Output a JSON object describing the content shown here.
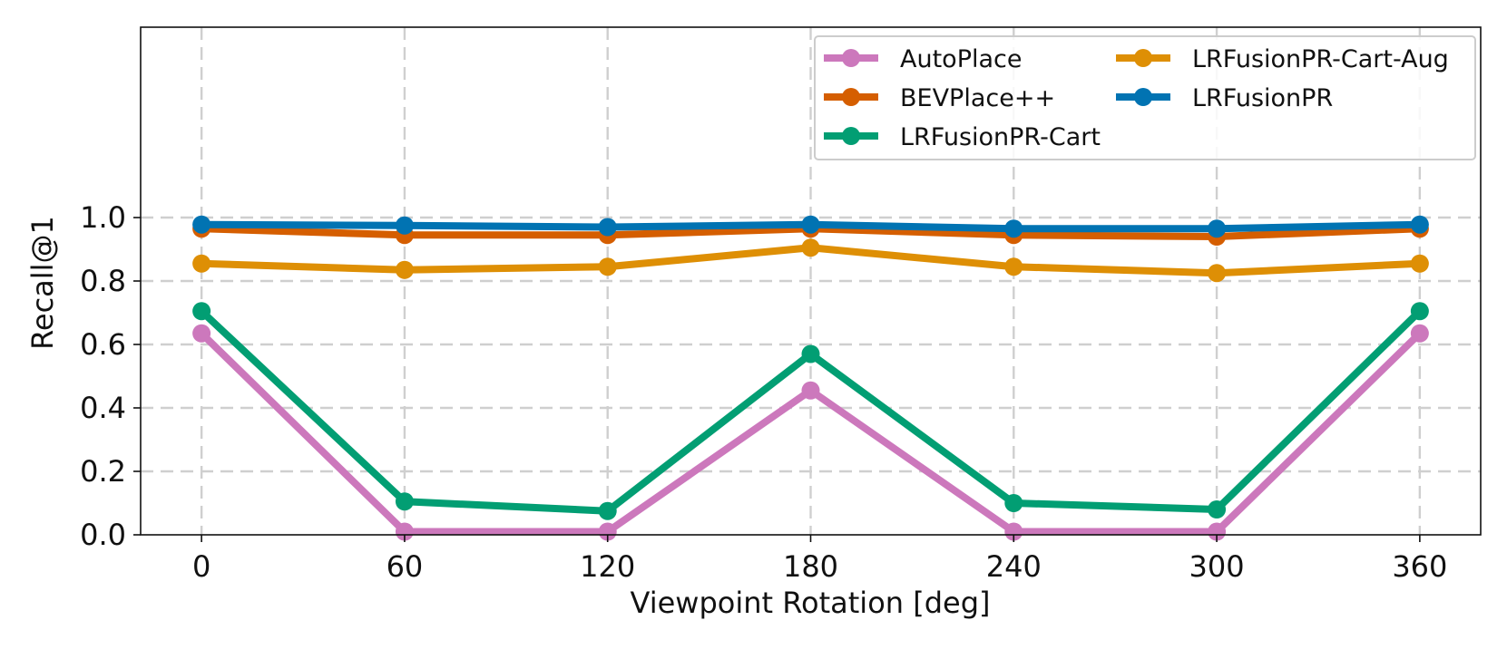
{
  "chart_data": {
    "type": "line",
    "title": "",
    "xlabel": "Viewpoint Rotation [deg]",
    "ylabel": "Recall@1",
    "x": [
      0,
      60,
      120,
      180,
      240,
      300,
      360
    ],
    "xticks": [
      "0",
      "60",
      "120",
      "180",
      "240",
      "300",
      "360"
    ],
    "yticks": [
      "0.0",
      "0.2",
      "0.4",
      "0.6",
      "0.8",
      "1.0"
    ],
    "xlim": [
      -18,
      378
    ],
    "ylim": [
      0,
      1.6
    ],
    "grid": true,
    "legend_position": "top-right",
    "series": [
      {
        "name": "AutoPlace",
        "color": "#cc78bc",
        "values": [
          0.635,
          0.01,
          0.01,
          0.455,
          0.01,
          0.01,
          0.635
        ]
      },
      {
        "name": "BEVPlace++",
        "color": "#d55e00",
        "values": [
          0.965,
          0.945,
          0.945,
          0.965,
          0.945,
          0.94,
          0.965
        ]
      },
      {
        "name": "LRFusionPR-Cart",
        "color": "#029e73",
        "values": [
          0.705,
          0.105,
          0.075,
          0.57,
          0.1,
          0.08,
          0.705
        ]
      },
      {
        "name": "LRFusionPR-Cart-Aug",
        "color": "#de8f05",
        "values": [
          0.855,
          0.835,
          0.845,
          0.905,
          0.845,
          0.825,
          0.855
        ]
      },
      {
        "name": "LRFusionPR",
        "color": "#0173b2",
        "values": [
          0.978,
          0.975,
          0.97,
          0.978,
          0.965,
          0.965,
          0.978
        ]
      }
    ]
  }
}
